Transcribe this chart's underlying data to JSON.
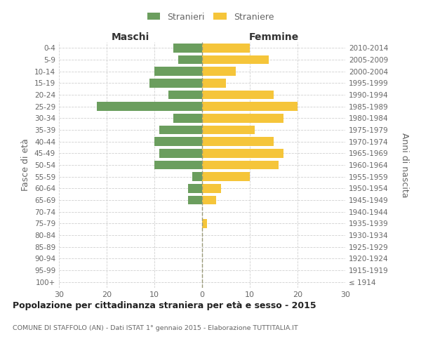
{
  "age_groups": [
    "100+",
    "95-99",
    "90-94",
    "85-89",
    "80-84",
    "75-79",
    "70-74",
    "65-69",
    "60-64",
    "55-59",
    "50-54",
    "45-49",
    "40-44",
    "35-39",
    "30-34",
    "25-29",
    "20-24",
    "15-19",
    "10-14",
    "5-9",
    "0-4"
  ],
  "birth_years": [
    "≤ 1914",
    "1915-1919",
    "1920-1924",
    "1925-1929",
    "1930-1934",
    "1935-1939",
    "1940-1944",
    "1945-1949",
    "1950-1954",
    "1955-1959",
    "1960-1964",
    "1965-1969",
    "1970-1974",
    "1975-1979",
    "1980-1984",
    "1985-1989",
    "1990-1994",
    "1995-1999",
    "2000-2004",
    "2005-2009",
    "2010-2014"
  ],
  "males": [
    0,
    0,
    0,
    0,
    0,
    0,
    0,
    3,
    3,
    2,
    10,
    9,
    10,
    9,
    6,
    22,
    7,
    11,
    10,
    5,
    6
  ],
  "females": [
    0,
    0,
    0,
    0,
    0,
    1,
    0,
    3,
    4,
    10,
    16,
    17,
    15,
    11,
    17,
    20,
    15,
    5,
    7,
    14,
    10
  ],
  "male_color": "#6b9e5e",
  "female_color": "#f5c53a",
  "legend_male": "Stranieri",
  "legend_female": "Straniere",
  "left_header": "Maschi",
  "right_header": "Femmine",
  "ylabel_left": "Fasce di età",
  "ylabel_right": "Anni di nascita",
  "title": "Popolazione per cittadinanza straniera per età e sesso - 2015",
  "subtitle": "COMUNE DI STAFFOLO (AN) - Dati ISTAT 1° gennaio 2015 - Elaborazione TUTTITALIA.IT",
  "xlim": 30,
  "bg_color": "#ffffff",
  "grid_color": "#d0d0d0",
  "text_color": "#666666",
  "bar_height": 0.75
}
